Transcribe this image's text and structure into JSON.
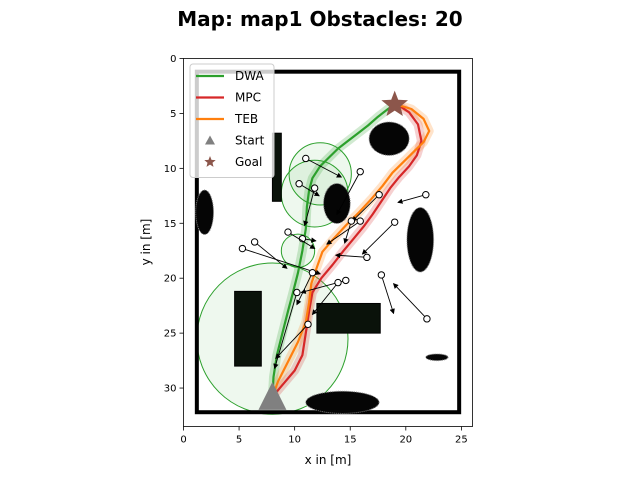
{
  "chart_data": {
    "type": "line",
    "title": "Map: map1 Obstacles: 20",
    "xlabel": "x in [m]",
    "ylabel": "y in [m]",
    "xlim": [
      0,
      26
    ],
    "ylim": [
      33.5,
      0
    ],
    "y_inverted": true,
    "xticks": [
      0,
      5,
      10,
      15,
      20,
      25
    ],
    "yticks": [
      0,
      5,
      10,
      15,
      20,
      25,
      30
    ],
    "grid": false,
    "legend_position": "top-left",
    "legend": [
      {
        "label": "DWA",
        "color": "#2ca02c",
        "marker": "line"
      },
      {
        "label": "MPC",
        "color": "#d62728",
        "marker": "line"
      },
      {
        "label": "TEB",
        "color": "#ff7f0e",
        "marker": "line"
      },
      {
        "label": "Start",
        "color": "#808080",
        "marker": "triangle"
      },
      {
        "label": "Goal",
        "color": "#8c564b",
        "marker": "star"
      }
    ],
    "start": {
      "x": 8.0,
      "y": 30.8
    },
    "goal": {
      "x": 19.0,
      "y": 4.2
    },
    "boundary": {
      "x_min": 1.2,
      "x_max": 24.8,
      "y_min": 1.2,
      "y_max": 32.2
    },
    "static_obstacles": [
      {
        "shape": "rect",
        "x0": 4.6,
        "y0": 21.2,
        "x1": 7.0,
        "y1": 28.0
      },
      {
        "shape": "rect",
        "x0": 12.0,
        "y0": 22.3,
        "x1": 17.7,
        "y1": 25.0
      },
      {
        "shape": "rect",
        "x0": 8.0,
        "y0": 6.8,
        "x1": 8.8,
        "y1": 13.0
      },
      {
        "shape": "ellipse",
        "cx": 21.3,
        "cy": 16.5,
        "rx": 1.2,
        "ry": 2.9
      },
      {
        "shape": "ellipse",
        "cx": 22.8,
        "cy": 27.2,
        "rx": 1.0,
        "ry": 0.3
      },
      {
        "shape": "ellipse",
        "cx": 13.8,
        "cy": 13.2,
        "rx": 1.2,
        "ry": 1.8
      },
      {
        "shape": "ellipse",
        "cx": 18.5,
        "cy": 7.3,
        "rx": 1.8,
        "ry": 1.5
      },
      {
        "shape": "ellipse",
        "cx": 1.9,
        "cy": 14.0,
        "rx": 0.8,
        "ry": 2.0
      },
      {
        "shape": "ellipse",
        "cx": 14.3,
        "cy": 31.3,
        "rx": 3.3,
        "ry": 1.0
      }
    ],
    "zones": [
      {
        "cx": 8.0,
        "cy": 25.5,
        "r": 6.8
      },
      {
        "cx": 12.3,
        "cy": 10.5,
        "r": 2.8
      },
      {
        "cx": 11.8,
        "cy": 12.3,
        "r": 3.0
      },
      {
        "cx": 10.3,
        "cy": 17.5,
        "r": 1.5
      }
    ],
    "dynamic_obstacles": [
      {
        "from": [
          11.0,
          9.1
        ],
        "to": [
          14.2,
          10.8
        ]
      },
      {
        "from": [
          10.4,
          11.4
        ],
        "to": [
          12.2,
          12.5
        ]
      },
      {
        "from": [
          11.8,
          11.8
        ],
        "to": [
          10.9,
          15.2
        ]
      },
      {
        "from": [
          15.9,
          10.3
        ],
        "to": [
          13.8,
          14.2
        ]
      },
      {
        "from": [
          17.6,
          12.4
        ],
        "to": [
          15.2,
          14.8
        ]
      },
      {
        "from": [
          21.8,
          12.4
        ],
        "to": [
          19.3,
          13.1
        ]
      },
      {
        "from": [
          15.1,
          14.8
        ],
        "to": [
          14.5,
          16.8
        ]
      },
      {
        "from": [
          15.9,
          14.8
        ],
        "to": [
          12.9,
          16.9
        ]
      },
      {
        "from": [
          10.7,
          16.4
        ],
        "to": [
          11.9,
          16.6
        ]
      },
      {
        "from": [
          9.4,
          15.8
        ],
        "to": [
          11.8,
          17.3
        ]
      },
      {
        "from": [
          19.0,
          14.9
        ],
        "to": [
          16.1,
          17.8
        ]
      },
      {
        "from": [
          16.5,
          18.1
        ],
        "to": [
          13.7,
          17.9
        ]
      },
      {
        "from": [
          6.4,
          16.7
        ],
        "to": [
          9.3,
          19.1
        ]
      },
      {
        "from": [
          5.3,
          17.3
        ],
        "to": [
          12.3,
          19.6
        ]
      },
      {
        "from": [
          11.6,
          19.5
        ],
        "to": [
          10.2,
          22.4
        ]
      },
      {
        "from": [
          17.8,
          19.7
        ],
        "to": [
          18.9,
          23.2
        ]
      },
      {
        "from": [
          14.6,
          20.2
        ],
        "to": [
          10.6,
          21.3
        ]
      },
      {
        "from": [
          13.9,
          20.4
        ],
        "to": [
          11.6,
          23.3
        ]
      },
      {
        "from": [
          21.9,
          23.7
        ],
        "to": [
          18.9,
          20.5
        ]
      },
      {
        "from": [
          11.2,
          24.2
        ],
        "to": [
          8.3,
          27.3
        ]
      },
      {
        "from": [
          10.2,
          21.3
        ],
        "to": [
          8.2,
          28.2
        ]
      }
    ],
    "series": [
      {
        "name": "DWA",
        "color": "#2ca02c",
        "x": [
          8.0,
          8.1,
          8.4,
          8.9,
          9.4,
          9.8,
          10.3,
          10.7,
          11.0,
          11.1,
          11.3,
          11.6,
          12.3,
          13.1,
          13.9,
          14.8,
          15.7,
          16.6,
          17.5,
          18.4,
          19.0
        ],
        "y": [
          30.8,
          29.0,
          27.0,
          25.0,
          23.0,
          21.5,
          19.5,
          17.5,
          15.5,
          13.5,
          12.0,
          10.9,
          9.8,
          9.0,
          8.2,
          7.5,
          6.8,
          6.1,
          5.3,
          4.6,
          4.2
        ]
      },
      {
        "name": "MPC",
        "color": "#d62728",
        "x": [
          8.0,
          9.0,
          10.0,
          10.7,
          11.0,
          11.3,
          11.6,
          12.4,
          13.4,
          14.4,
          15.3,
          16.2,
          17.0,
          17.8,
          18.6,
          19.4,
          20.3,
          21.0,
          21.4,
          21.1,
          20.3,
          19.4
        ],
        "y": [
          30.8,
          29.6,
          28.4,
          27.0,
          25.0,
          23.0,
          21.3,
          20.0,
          18.8,
          17.5,
          16.4,
          15.3,
          14.2,
          13.0,
          11.8,
          10.8,
          9.8,
          8.8,
          7.5,
          6.0,
          4.9,
          4.3
        ]
      },
      {
        "name": "TEB",
        "color": "#ff7f0e",
        "x": [
          8.0,
          8.5,
          9.4,
          10.3,
          11.0,
          11.3,
          11.5,
          12.0,
          12.5,
          13.5,
          14.6,
          15.8,
          16.9,
          17.9,
          18.8,
          19.8,
          20.8,
          21.6,
          22.1,
          21.6,
          20.5,
          19.2
        ],
        "y": [
          30.8,
          29.4,
          27.6,
          25.8,
          24.0,
          22.2,
          20.5,
          19.0,
          17.6,
          16.4,
          15.2,
          14.0,
          12.8,
          11.6,
          10.4,
          9.4,
          8.4,
          7.6,
          6.6,
          5.5,
          4.6,
          4.2
        ]
      }
    ]
  }
}
